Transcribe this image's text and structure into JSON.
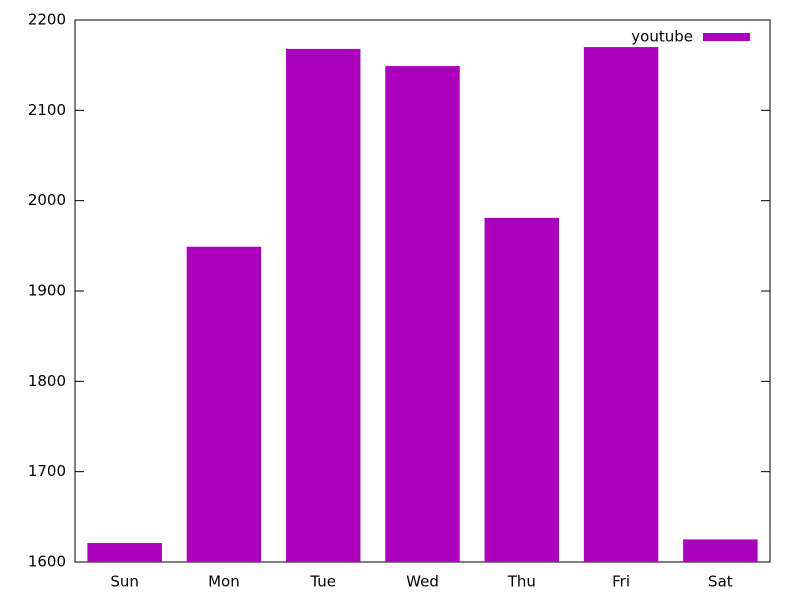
{
  "chart_data": {
    "type": "bar",
    "categories": [
      "Sun",
      "Mon",
      "Tue",
      "Wed",
      "Thu",
      "Fri",
      "Sat"
    ],
    "series": [
      {
        "name": "youtube",
        "color": "#aa00bb",
        "values": [
          1621,
          1949,
          2168,
          2149,
          1981,
          2170,
          1625
        ]
      }
    ],
    "ylim": [
      1600,
      2200
    ],
    "yticks": [
      1600,
      1700,
      1800,
      1900,
      2000,
      2100,
      2200
    ],
    "grid": false,
    "legend": "top-right"
  }
}
